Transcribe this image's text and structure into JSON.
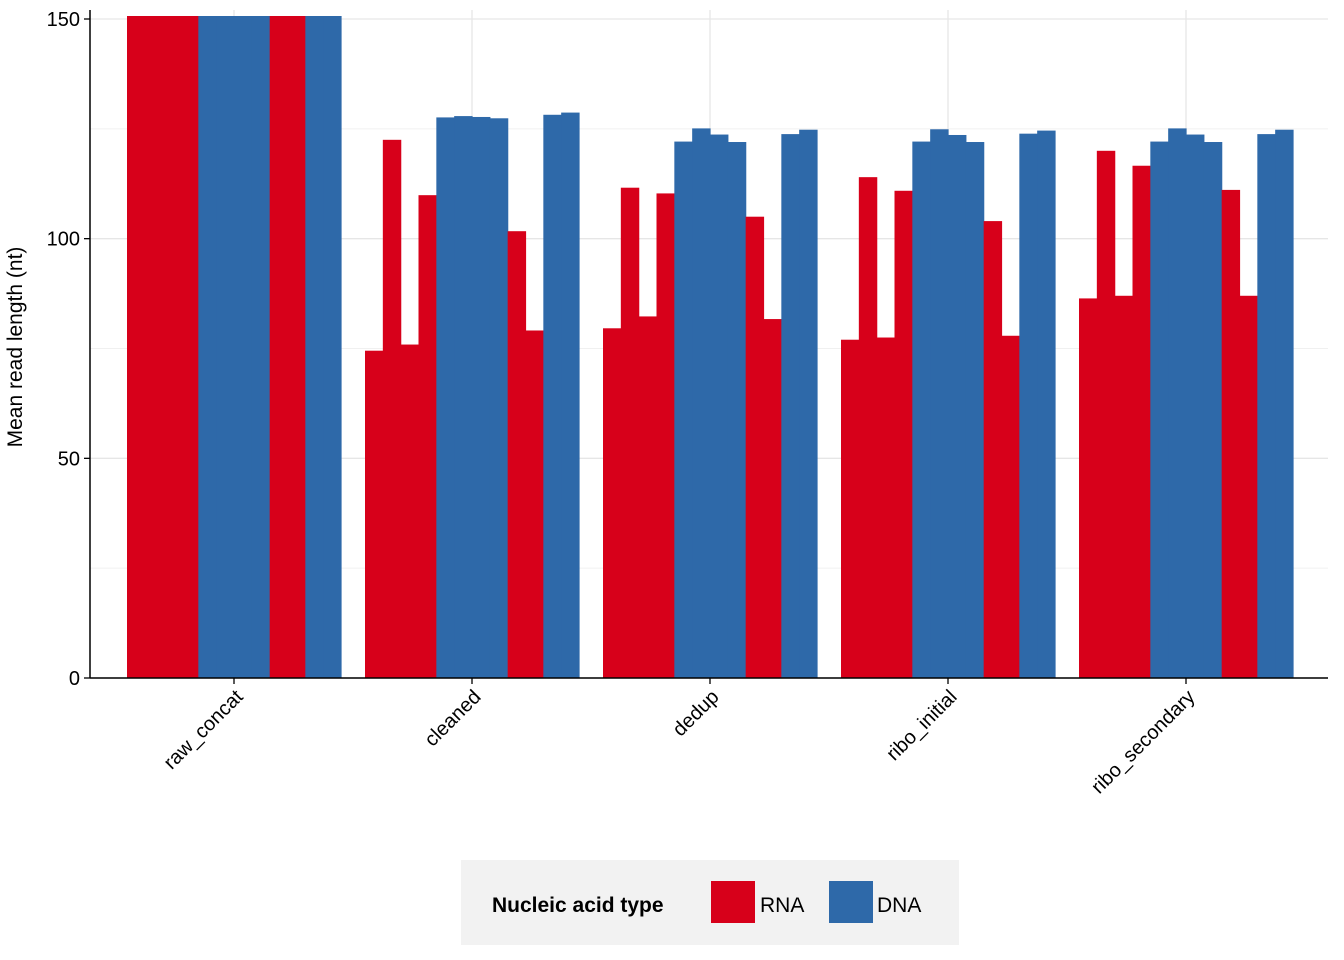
{
  "chart_data": {
    "type": "bar",
    "title": "",
    "xlabel": "",
    "ylabel": "Mean read length (nt)",
    "ylim": [
      0,
      150
    ],
    "yticks": [
      0,
      50,
      100,
      150
    ],
    "grid": true,
    "legend_position": "bottom",
    "categories": [
      "raw_concat",
      "cleaned",
      "dedup",
      "ribo_initial",
      "ribo_secondary"
    ],
    "legend": {
      "title": "Nucleic acid type",
      "entries": [
        {
          "label": "RNA",
          "color": "#d7001a"
        },
        {
          "label": "DNA",
          "color": "#2e69a9"
        }
      ]
    },
    "bar_types": [
      "RNA",
      "RNA",
      "RNA",
      "RNA",
      "DNA",
      "DNA",
      "DNA",
      "DNA",
      "RNA",
      "RNA",
      "DNA",
      "DNA"
    ],
    "values": [
      [
        151,
        151,
        151,
        151,
        151,
        151,
        151,
        151,
        151,
        151,
        151,
        151
      ],
      [
        74.5,
        122.5,
        75.9,
        109.9,
        127.6,
        127.9,
        127.7,
        127.4,
        101.7,
        79.1,
        128.2,
        128.7
      ],
      [
        79.6,
        111.6,
        82.3,
        110.3,
        122.1,
        125.1,
        123.7,
        122.0,
        105.0,
        81.7,
        123.8,
        124.8
      ],
      [
        77.0,
        114.0,
        77.5,
        110.9,
        122.1,
        124.9,
        123.6,
        122.0,
        104.0,
        77.9,
        123.9,
        124.6
      ],
      [
        86.4,
        120.0,
        87.0,
        116.6,
        122.1,
        125.1,
        123.7,
        122.0,
        111.1,
        87.0,
        123.8,
        124.8
      ]
    ]
  }
}
